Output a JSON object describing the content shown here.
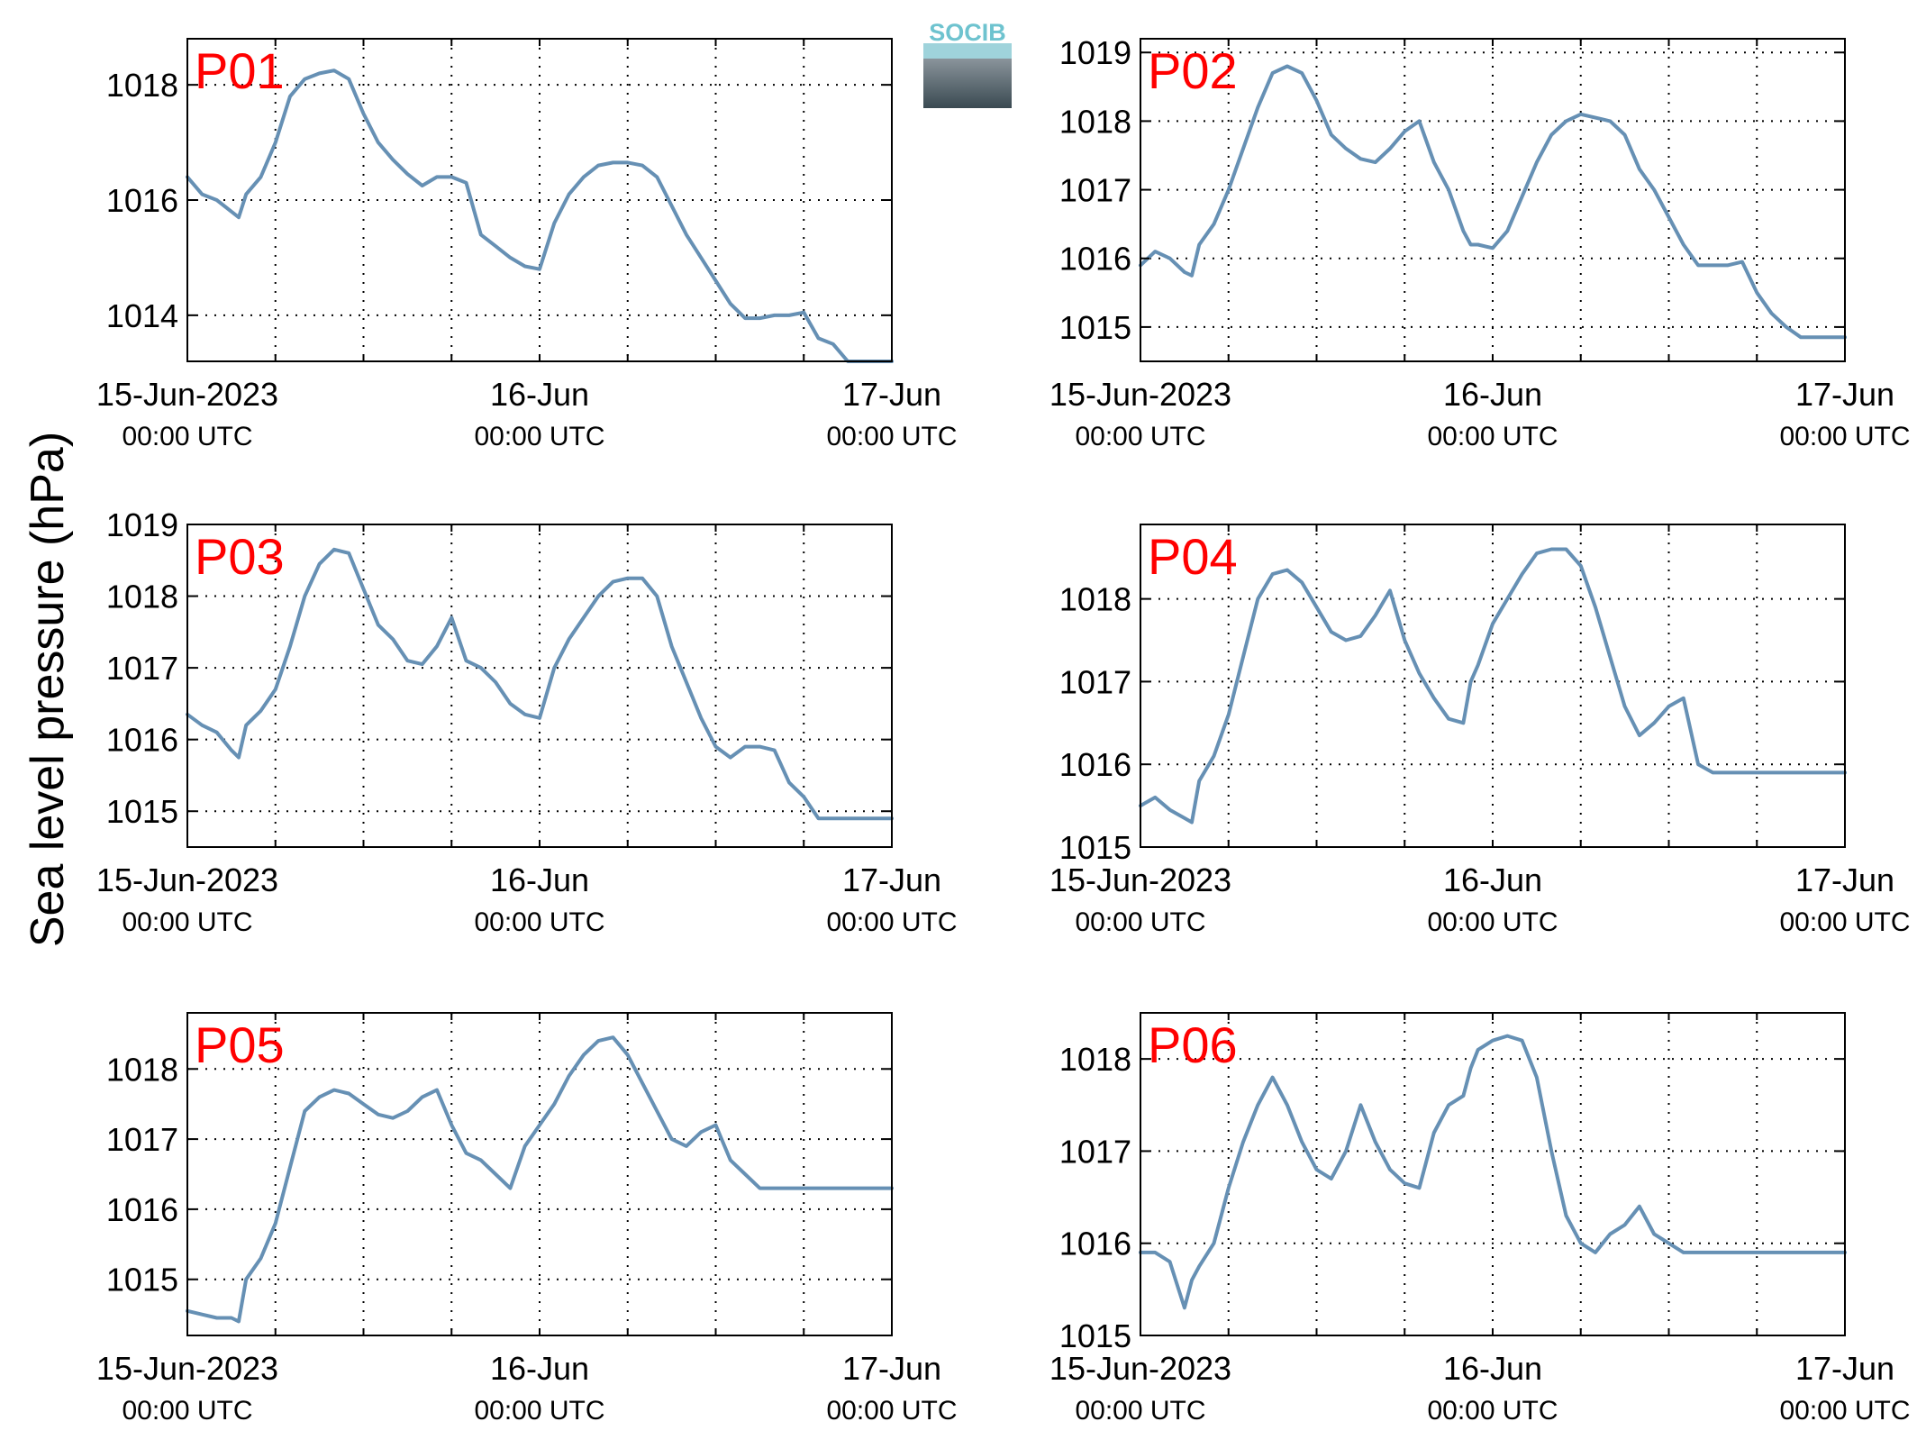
{
  "figure": {
    "ylabel": "Sea level pressure (hPa)",
    "logo_text": "SOCIB",
    "line_color": "#6690b4",
    "label_color": "#ff0000"
  },
  "chart_data": [
    {
      "type": "line",
      "name": "P01",
      "xlim": [
        0,
        48
      ],
      "ylim": [
        1013.2,
        1018.8
      ],
      "yticks": [
        1014,
        1016,
        1018
      ],
      "xticks": [
        {
          "x": 0,
          "label": "15-Jun-2023",
          "sub": "00:00 UTC"
        },
        {
          "x": 24,
          "label": "16-Jun",
          "sub": "00:00 UTC"
        },
        {
          "x": 48,
          "label": "17-Jun",
          "sub": "00:00 UTC"
        }
      ],
      "grid": true,
      "x": [
        0,
        1,
        2,
        3,
        3.5,
        4,
        5,
        6,
        7,
        8,
        9,
        10,
        11,
        12,
        13,
        14,
        15,
        16,
        17,
        18,
        19,
        20,
        21,
        22,
        23,
        24,
        25,
        26,
        27,
        28,
        29,
        30,
        31,
        32,
        33,
        34,
        35,
        36,
        37,
        38,
        39,
        40,
        41,
        42,
        43,
        44,
        45,
        46,
        47,
        48
      ],
      "values": [
        1016.4,
        1016.1,
        1016.0,
        1015.8,
        1015.7,
        1016.1,
        1016.4,
        1017.0,
        1017.8,
        1018.1,
        1018.2,
        1018.25,
        1018.1,
        1017.5,
        1017.0,
        1016.7,
        1016.45,
        1016.25,
        1016.4,
        1016.4,
        1016.3,
        1015.4,
        1015.2,
        1015.0,
        1014.85,
        1014.8,
        1015.6,
        1016.1,
        1016.4,
        1016.6,
        1016.65,
        1016.65,
        1016.6,
        1016.4,
        1015.9,
        1015.4,
        1015.0,
        1014.6,
        1014.2,
        1013.95,
        1013.95,
        1014.0,
        1014.0,
        1014.05,
        1013.6,
        1013.5,
        1013.2,
        1013.2,
        1013.2,
        1013.2
      ]
    },
    {
      "type": "line",
      "name": "P02",
      "xlim": [
        0,
        48
      ],
      "ylim": [
        1014.5,
        1019.2
      ],
      "yticks": [
        1015,
        1016,
        1017,
        1018,
        1019
      ],
      "xticks": [
        {
          "x": 0,
          "label": "15-Jun-2023",
          "sub": "00:00 UTC"
        },
        {
          "x": 24,
          "label": "16-Jun",
          "sub": "00:00 UTC"
        },
        {
          "x": 48,
          "label": "17-Jun",
          "sub": "00:00 UTC"
        }
      ],
      "grid": true,
      "x": [
        0,
        1,
        2,
        3,
        3.5,
        4,
        5,
        6,
        7,
        8,
        9,
        10,
        11,
        12,
        13,
        14,
        15,
        16,
        17,
        18,
        19,
        20,
        21,
        22,
        22.5,
        23,
        24,
        25,
        26,
        27,
        28,
        29,
        30,
        31,
        32,
        33,
        34,
        35,
        36,
        37,
        38,
        39,
        40,
        41,
        42,
        43,
        44,
        45,
        46,
        47,
        48
      ],
      "values": [
        1015.9,
        1016.1,
        1016.0,
        1015.8,
        1015.75,
        1016.2,
        1016.5,
        1017.0,
        1017.6,
        1018.2,
        1018.7,
        1018.8,
        1018.7,
        1018.3,
        1017.8,
        1017.6,
        1017.45,
        1017.4,
        1017.6,
        1017.85,
        1018.0,
        1017.4,
        1017.0,
        1016.4,
        1016.2,
        1016.2,
        1016.15,
        1016.4,
        1016.9,
        1017.4,
        1017.8,
        1018.0,
        1018.1,
        1018.05,
        1018.0,
        1017.8,
        1017.3,
        1017.0,
        1016.6,
        1016.2,
        1015.9,
        1015.9,
        1015.9,
        1015.95,
        1015.5,
        1015.2,
        1015.0,
        1014.85,
        1014.85,
        1014.85,
        1014.85
      ]
    },
    {
      "type": "line",
      "name": "P03",
      "xlim": [
        0,
        48
      ],
      "ylim": [
        1014.5,
        1019.0
      ],
      "yticks": [
        1015,
        1016,
        1017,
        1018,
        1019
      ],
      "xticks": [
        {
          "x": 0,
          "label": "15-Jun-2023",
          "sub": "00:00 UTC"
        },
        {
          "x": 24,
          "label": "16-Jun",
          "sub": "00:00 UTC"
        },
        {
          "x": 48,
          "label": "17-Jun",
          "sub": "00:00 UTC"
        }
      ],
      "grid": true,
      "x": [
        0,
        1,
        2,
        3,
        3.5,
        4,
        5,
        6,
        7,
        8,
        9,
        10,
        11,
        12,
        13,
        14,
        15,
        16,
        17,
        18,
        19,
        20,
        21,
        22,
        23,
        24,
        25,
        26,
        27,
        28,
        29,
        30,
        31,
        32,
        33,
        34,
        35,
        36,
        37,
        38,
        39,
        40,
        41,
        42,
        43,
        44,
        45,
        46,
        47,
        48
      ],
      "values": [
        1016.35,
        1016.2,
        1016.1,
        1015.85,
        1015.75,
        1016.2,
        1016.4,
        1016.7,
        1017.3,
        1018.0,
        1018.45,
        1018.65,
        1018.6,
        1018.1,
        1017.6,
        1017.4,
        1017.1,
        1017.05,
        1017.3,
        1017.7,
        1017.1,
        1017.0,
        1016.8,
        1016.5,
        1016.35,
        1016.3,
        1017.0,
        1017.4,
        1017.7,
        1018.0,
        1018.2,
        1018.25,
        1018.25,
        1018.0,
        1017.3,
        1016.8,
        1016.3,
        1015.9,
        1015.75,
        1015.9,
        1015.9,
        1015.85,
        1015.4,
        1015.2,
        1014.9,
        1014.9,
        1014.9,
        1014.9,
        1014.9,
        1014.9
      ]
    },
    {
      "type": "line",
      "name": "P04",
      "xlim": [
        0,
        48
      ],
      "ylim": [
        1015.0,
        1018.9
      ],
      "yticks": [
        1015,
        1016,
        1017,
        1018
      ],
      "xticks": [
        {
          "x": 0,
          "label": "15-Jun-2023",
          "sub": "00:00 UTC"
        },
        {
          "x": 24,
          "label": "16-Jun",
          "sub": "00:00 UTC"
        },
        {
          "x": 48,
          "label": "17-Jun",
          "sub": "00:00 UTC"
        }
      ],
      "grid": true,
      "x": [
        0,
        1,
        2,
        3,
        3.5,
        4,
        5,
        6,
        7,
        8,
        9,
        10,
        11,
        12,
        13,
        14,
        15,
        16,
        17,
        18,
        19,
        20,
        21,
        22,
        22.5,
        23,
        24,
        25,
        26,
        27,
        28,
        29,
        30,
        31,
        32,
        33,
        34,
        35,
        36,
        37,
        38,
        39,
        40,
        41,
        42,
        43,
        44,
        45,
        46,
        47,
        48
      ],
      "values": [
        1015.5,
        1015.6,
        1015.45,
        1015.35,
        1015.3,
        1015.8,
        1016.1,
        1016.6,
        1017.3,
        1018.0,
        1018.3,
        1018.35,
        1018.2,
        1017.9,
        1017.6,
        1017.5,
        1017.55,
        1017.8,
        1018.1,
        1017.5,
        1017.1,
        1016.8,
        1016.55,
        1016.5,
        1017.0,
        1017.2,
        1017.7,
        1018.0,
        1018.3,
        1018.55,
        1018.6,
        1018.6,
        1018.4,
        1017.9,
        1017.3,
        1016.7,
        1016.35,
        1016.5,
        1016.7,
        1016.8,
        1016.0,
        1015.9,
        1015.9,
        1015.9,
        1015.9,
        1015.9,
        1015.9,
        1015.9,
        1015.9,
        1015.9,
        1015.9
      ]
    },
    {
      "type": "line",
      "name": "P05",
      "xlim": [
        0,
        48
      ],
      "ylim": [
        1014.2,
        1018.8
      ],
      "yticks": [
        1015,
        1016,
        1017,
        1018
      ],
      "xticks": [
        {
          "x": 0,
          "label": "15-Jun-2023",
          "sub": "00:00 UTC"
        },
        {
          "x": 24,
          "label": "16-Jun",
          "sub": "00:00 UTC"
        },
        {
          "x": 48,
          "label": "17-Jun",
          "sub": "00:00 UTC"
        }
      ],
      "grid": true,
      "x": [
        0,
        1,
        2,
        3,
        3.5,
        4,
        5,
        6,
        7,
        8,
        9,
        10,
        11,
        12,
        13,
        14,
        15,
        16,
        17,
        18,
        19,
        20,
        21,
        22,
        23,
        24,
        25,
        26,
        27,
        28,
        29,
        30,
        31,
        32,
        33,
        34,
        35,
        36,
        37,
        38,
        39,
        40,
        41,
        42,
        43,
        44,
        45,
        46,
        47,
        48
      ],
      "values": [
        1014.55,
        1014.5,
        1014.45,
        1014.45,
        1014.4,
        1015.0,
        1015.3,
        1015.8,
        1016.6,
        1017.4,
        1017.6,
        1017.7,
        1017.65,
        1017.5,
        1017.35,
        1017.3,
        1017.4,
        1017.6,
        1017.7,
        1017.2,
        1016.8,
        1016.7,
        1016.5,
        1016.3,
        1016.9,
        1017.2,
        1017.5,
        1017.9,
        1018.2,
        1018.4,
        1018.45,
        1018.2,
        1017.8,
        1017.4,
        1017.0,
        1016.9,
        1017.1,
        1017.2,
        1016.7,
        1016.5,
        1016.3,
        1016.3,
        1016.3,
        1016.3,
        1016.3,
        1016.3,
        1016.3,
        1016.3,
        1016.3,
        1016.3
      ]
    },
    {
      "type": "line",
      "name": "P06",
      "xlim": [
        0,
        48
      ],
      "ylim": [
        1015.0,
        1018.5
      ],
      "yticks": [
        1015,
        1016,
        1017,
        1018
      ],
      "xticks": [
        {
          "x": 0,
          "label": "15-Jun-2023",
          "sub": "00:00 UTC"
        },
        {
          "x": 24,
          "label": "16-Jun",
          "sub": "00:00 UTC"
        },
        {
          "x": 48,
          "label": "17-Jun",
          "sub": "00:00 UTC"
        }
      ],
      "grid": true,
      "x": [
        0,
        1,
        2,
        2.5,
        3,
        3.5,
        4,
        5,
        6,
        7,
        8,
        9,
        10,
        11,
        12,
        13,
        14,
        15,
        16,
        17,
        18,
        19,
        20,
        21,
        22,
        22.5,
        23,
        24,
        25,
        26,
        27,
        28,
        29,
        30,
        31,
        32,
        33,
        34,
        35,
        36,
        37,
        38,
        39,
        40,
        41,
        42,
        43,
        44,
        45,
        46,
        47,
        48
      ],
      "values": [
        1015.9,
        1015.9,
        1015.8,
        1015.55,
        1015.3,
        1015.6,
        1015.75,
        1016.0,
        1016.6,
        1017.1,
        1017.5,
        1017.8,
        1017.5,
        1017.1,
        1016.8,
        1016.7,
        1017.0,
        1017.5,
        1017.1,
        1016.8,
        1016.65,
        1016.6,
        1017.2,
        1017.5,
        1017.6,
        1017.9,
        1018.1,
        1018.2,
        1018.25,
        1018.2,
        1017.8,
        1017.0,
        1016.3,
        1016.0,
        1015.9,
        1016.1,
        1016.2,
        1016.4,
        1016.1,
        1016.0,
        1015.9,
        1015.9,
        1015.9,
        1015.9,
        1015.9,
        1015.9,
        1015.9,
        1015.9,
        1015.9,
        1015.9,
        1015.9,
        1015.9
      ]
    }
  ]
}
